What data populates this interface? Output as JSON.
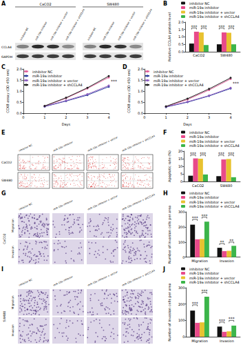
{
  "chart_data": [
    {
      "type": "bar",
      "categories": [
        "CaCO2",
        "SW480"
      ],
      "ylabel": "Relative CCLA4 protein level",
      "ylim": [
        0,
        2
      ],
      "yticks": [
        {
          "value": 0,
          "label": "0.0"
        },
        {
          "value": 0.5,
          "label": "0.5"
        },
        {
          "value": 1,
          "label": "1.0"
        },
        {
          "value": 1.5,
          "label": "1.5"
        },
        {
          "value": 2,
          "label": "2.0"
        }
      ],
      "grid": false,
      "legend": "top-left",
      "series": [
        {
          "name": "inhibitor NC",
          "color": "#111111",
          "values": [
            0.55,
            0.5
          ]
        },
        {
          "name": "miR-19a inhibitor",
          "color": "#e84a8a",
          "values": [
            1.35,
            1.3
          ]
        },
        {
          "name": "miR-19a inhibitor + vector",
          "color": "#e8c230",
          "values": [
            1.3,
            1.28
          ]
        },
        {
          "name": "miR-19a inhibitor + shCCLA4",
          "color": "#3cb54a",
          "values": [
            0.45,
            0.5
          ]
        }
      ],
      "annotations": [
        {
          "text": "***",
          "category": "CaCO2",
          "from": "inhibitor NC",
          "to": "miR-19a inhibitor",
          "y": 1.6
        },
        {
          "text": "***",
          "category": "CaCO2",
          "from": "miR-19a inhibitor + vector",
          "to": "miR-19a inhibitor + shCCLA4",
          "y": 1.6
        },
        {
          "text": "***",
          "category": "SW480",
          "from": "inhibitor NC",
          "to": "miR-19a inhibitor",
          "y": 1.6
        },
        {
          "text": "***",
          "category": "SW480",
          "from": "miR-19a inhibitor + vector",
          "to": "miR-19a inhibitor + shCCLA4",
          "y": 1.6
        }
      ]
    },
    {
      "type": "line",
      "x": [
        1,
        2,
        3,
        4
      ],
      "xlabel": "Days",
      "ylabel": "CCK8 assay (OD 450 nm)",
      "xlim": [
        0,
        4
      ],
      "xticks": [
        0,
        1,
        2,
        3,
        4
      ],
      "ylim": [
        0,
        2
      ],
      "yticks": [
        {
          "value": 0,
          "label": "0.0"
        },
        {
          "value": 0.5,
          "label": "0.5"
        },
        {
          "value": 1,
          "label": "1.0"
        },
        {
          "value": 1.5,
          "label": "1.5"
        },
        {
          "value": 2,
          "label": "2.0"
        }
      ],
      "grid": false,
      "legend": "top-left",
      "marker": "circle",
      "series": [
        {
          "name": "inhibitor NC",
          "color": "#e0609a",
          "values": [
            0.32,
            0.68,
            1.12,
            1.62
          ]
        },
        {
          "name": "miR-19a inhibitor",
          "color": "#2c3e9e",
          "values": [
            0.3,
            0.55,
            0.82,
            1.2
          ]
        },
        {
          "name": "miR-19a inhibitor + vector",
          "color": "#8e5fc0",
          "values": [
            0.31,
            0.57,
            0.86,
            1.25
          ]
        },
        {
          "name": "miR-19a inhibitor + shCCLA4",
          "color": "#222222",
          "values": [
            0.33,
            0.7,
            1.15,
            1.68
          ]
        }
      ],
      "annotations": [
        {
          "text": "***",
          "x": 4,
          "y": 1.45
        }
      ]
    },
    {
      "type": "line",
      "x": [
        1,
        2,
        3,
        4
      ],
      "xlabel": "Days",
      "ylabel": "CCK8 assay (OD 450 nm)",
      "xlim": [
        0,
        4
      ],
      "xticks": [
        0,
        1,
        2,
        3,
        4
      ],
      "ylim": [
        0,
        2
      ],
      "yticks": [
        {
          "value": 0,
          "label": "0.0"
        },
        {
          "value": 0.5,
          "label": "0.5"
        },
        {
          "value": 1,
          "label": "1.0"
        },
        {
          "value": 1.5,
          "label": "1.5"
        },
        {
          "value": 2,
          "label": "2.0"
        }
      ],
      "grid": false,
      "legend": "top-left",
      "marker": "circle",
      "series": [
        {
          "name": "inhibitor NC",
          "color": "#e0609a",
          "values": [
            0.3,
            0.62,
            1.05,
            1.55
          ]
        },
        {
          "name": "miR-19a inhibitor",
          "color": "#2c3e9e",
          "values": [
            0.28,
            0.5,
            0.78,
            1.12
          ]
        },
        {
          "name": "miR-19a inhibitor + vector",
          "color": "#8e5fc0",
          "values": [
            0.29,
            0.52,
            0.8,
            1.15
          ]
        },
        {
          "name": "miR-19a inhibitor + shCCLA4",
          "color": "#222222",
          "values": [
            0.31,
            0.66,
            1.1,
            1.6
          ]
        }
      ],
      "annotations": [
        {
          "text": "***",
          "x": 4,
          "y": 1.36
        }
      ]
    },
    {
      "type": "bar",
      "categories": [
        "CaCO2",
        "SW480"
      ],
      "ylabel": "Apoptotic rate (%)",
      "ylim": [
        0,
        20
      ],
      "yticks": [
        0,
        5,
        10,
        15,
        20
      ],
      "grid": false,
      "legend": "top-left",
      "series": [
        {
          "name": "inhibitor NC",
          "color": "#111111",
          "values": [
            3.8,
            3.5
          ]
        },
        {
          "name": "miR-19a inhibitor",
          "color": "#e84a8a",
          "values": [
            15.2,
            14.5
          ]
        },
        {
          "name": "miR-19a inhibitor + vector",
          "color": "#e8c230",
          "values": [
            15,
            14.8
          ]
        },
        {
          "name": "miR-19a inhibitor + shCCLA4",
          "color": "#3cb54a",
          "values": [
            4.6,
            2.8
          ]
        }
      ],
      "annotations": [
        {
          "text": "***",
          "category": "CaCO2",
          "from": "inhibitor NC",
          "to": "miR-19a inhibitor",
          "y": 17.5
        },
        {
          "text": "***",
          "category": "CaCO2",
          "from": "miR-19a inhibitor + vector",
          "to": "miR-19a inhibitor + shCCLA4",
          "y": 17.5
        },
        {
          "text": "***",
          "category": "SW480",
          "from": "inhibitor NC",
          "to": "miR-19a inhibitor",
          "y": 17.5
        },
        {
          "text": "***",
          "category": "SW480",
          "from": "miR-19a inhibitor + vector",
          "to": "miR-19a inhibitor + shCCLA4",
          "y": 17.5
        }
      ]
    },
    {
      "type": "bar",
      "categories": [
        "Migration",
        "Invasion"
      ],
      "ylabel": "Number of invasion cells per area",
      "ylim": [
        0,
        300
      ],
      "yticks": [
        0,
        100,
        200,
        300
      ],
      "grid": false,
      "legend": "top-left",
      "series": [
        {
          "name": "inhibitor NC",
          "color": "#111111",
          "values": [
            215,
            62
          ]
        },
        {
          "name": "miR-19a inhibitor",
          "color": "#e84a8a",
          "values": [
            118,
            40
          ]
        },
        {
          "name": "miR-19a inhibitor + vector",
          "color": "#e8c230",
          "values": [
            120,
            42
          ]
        },
        {
          "name": "miR-19a inhibitor + shCCLA4",
          "color": "#3cb54a",
          "values": [
            235,
            75
          ]
        }
      ],
      "annotations": [
        {
          "text": "***",
          "category": "Migration",
          "from": "inhibitor NC",
          "to": "miR-19a inhibitor",
          "y": 250
        },
        {
          "text": "***",
          "category": "Migration",
          "from": "miR-19a inhibitor + vector",
          "to": "miR-19a inhibitor + shCCLA4",
          "y": 265
        },
        {
          "text": "**",
          "category": "Invasion",
          "from": "inhibitor NC",
          "to": "miR-19a inhibitor",
          "y": 90
        },
        {
          "text": "**",
          "category": "Invasion",
          "from": "miR-19a inhibitor + vector",
          "to": "miR-19a inhibitor + shCCLA4",
          "y": 100
        }
      ]
    },
    {
      "type": "bar",
      "categories": [
        "Migration",
        "Invasion"
      ],
      "ylabel": "Number of invasion cells per area",
      "ylim": [
        0,
        300
      ],
      "yticks": [
        0,
        100,
        200,
        300
      ],
      "grid": false,
      "legend": "top-left",
      "series": [
        {
          "name": "inhibitor NC",
          "color": "#111111",
          "values": [
            160,
            62
          ]
        },
        {
          "name": "miR-19a inhibitor",
          "color": "#e84a8a",
          "values": [
            85,
            30
          ]
        },
        {
          "name": "miR-19a inhibitor + vector",
          "color": "#e8c230",
          "values": [
            88,
            33
          ]
        },
        {
          "name": "miR-19a inhibitor + shCCLA4",
          "color": "#3cb54a",
          "values": [
            245,
            68
          ]
        }
      ],
      "annotations": [
        {
          "text": "***",
          "category": "Migration",
          "from": "inhibitor NC",
          "to": "miR-19a inhibitor",
          "y": 195
        },
        {
          "text": "***",
          "category": "Migration",
          "from": "miR-19a inhibitor + vector",
          "to": "miR-19a inhibitor + shCCLA4",
          "y": 272
        },
        {
          "text": "***",
          "category": "Invasion",
          "from": "inhibitor NC",
          "to": "miR-19a inhibitor",
          "y": 90
        },
        {
          "text": "***",
          "category": "Invasion",
          "from": "miR-19a inhibitor + vector",
          "to": "miR-19a inhibitor + shCCLA4",
          "y": 100
        }
      ]
    }
  ],
  "figure": {
    "panel_labels": [
      "A",
      "B",
      "C",
      "D",
      "E",
      "F",
      "G",
      "H",
      "I",
      "J"
    ],
    "blot": {
      "cell_lines": [
        "CaCO2",
        "SW480"
      ],
      "lanes": [
        "inhibitor NC",
        "miR-19a inhibitor",
        "miR-19a inhibitor + vector",
        "miR-19a inhibitor + shCCLA4"
      ],
      "proteins": [
        "CCLA4",
        "GAPDH"
      ]
    },
    "flow": {
      "cell_lines": [
        "CaCO2",
        "SW480"
      ],
      "groups": [
        "inhibitor NC",
        "miR-19a inhibitor",
        "miR-19a inhibitor + vector",
        "miR-19a inhibitor + shCCLA4"
      ]
    },
    "transwell": [
      {
        "cell_line": "CaCO2",
        "rows": [
          "Migration",
          "Invasion"
        ],
        "groups": [
          "inhibitor NC",
          "miR-19a inhibitor",
          "miR-19a inhibitor + vector",
          "miR-19a inhibitor + shCCLA4"
        ]
      },
      {
        "cell_line": "SW480",
        "rows": [
          "Migration",
          "Invasion"
        ],
        "groups": [
          "inhibitor NC",
          "miR-19a inhibitor",
          "miR-19a inhibitor + vector",
          "miR-19a inhibitor + shCCLA4"
        ]
      }
    ]
  }
}
